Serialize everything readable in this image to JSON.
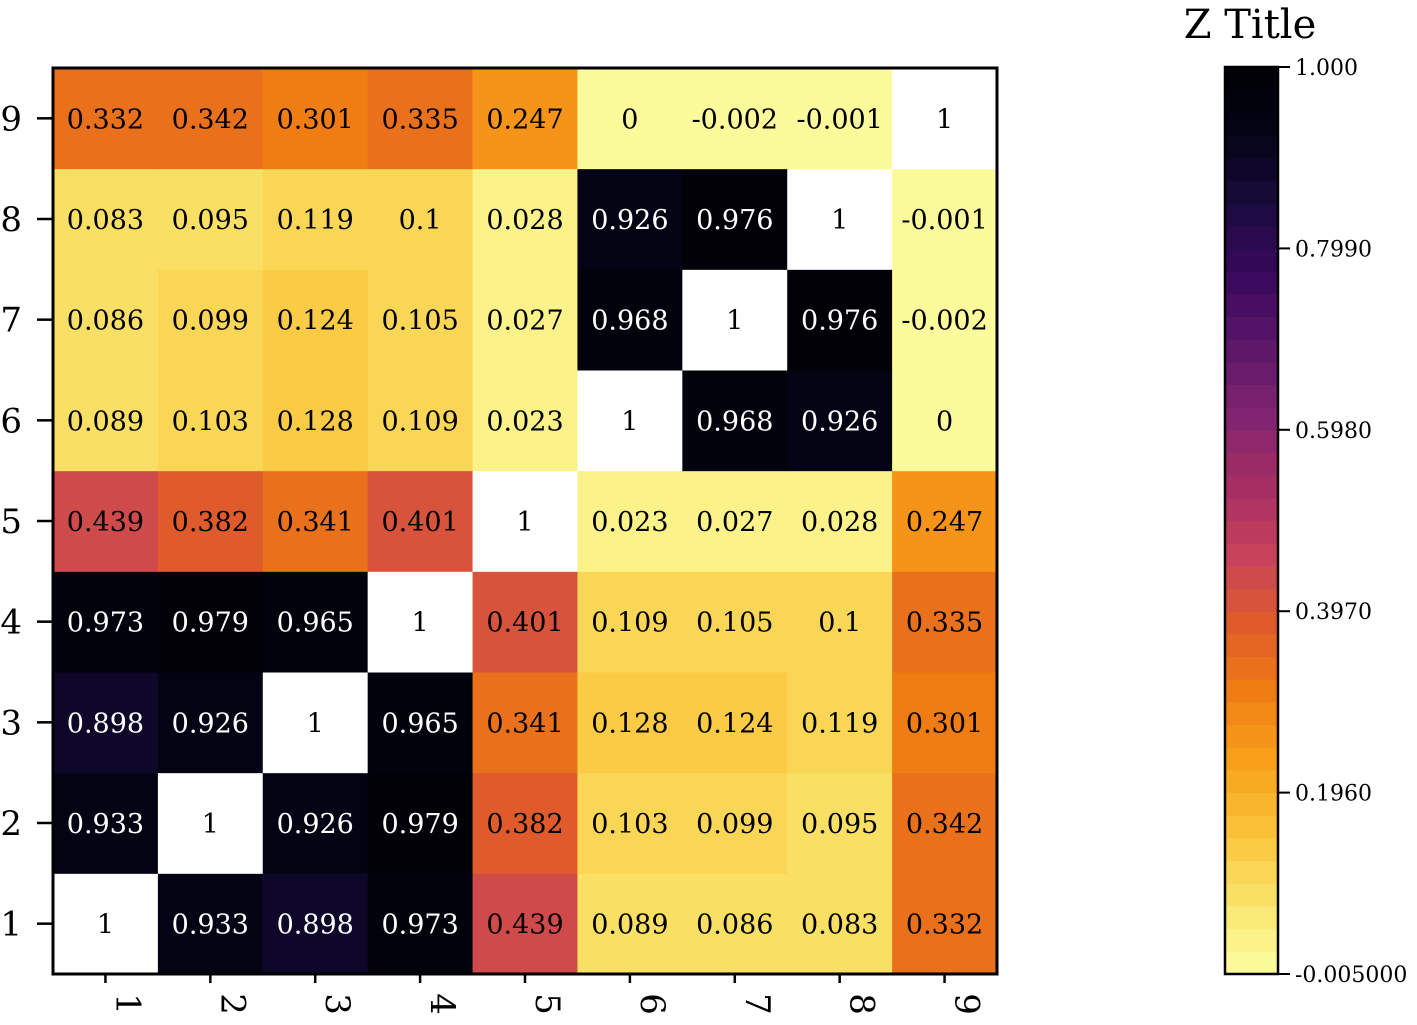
{
  "chart_data": {
    "type": "heatmap",
    "x_categories": [
      "1",
      "2",
      "3",
      "4",
      "5",
      "6",
      "7",
      "8",
      "9"
    ],
    "y_categories": [
      "1",
      "2",
      "3",
      "4",
      "5",
      "6",
      "7",
      "8",
      "9"
    ],
    "cell_labels": [
      [
        "1",
        "0.933",
        "0.898",
        "0.973",
        "0.439",
        "0.089",
        "0.086",
        "0.083",
        "0.332"
      ],
      [
        "0.933",
        "1",
        "0.926",
        "0.979",
        "0.382",
        "0.103",
        "0.099",
        "0.095",
        "0.342"
      ],
      [
        "0.898",
        "0.926",
        "1",
        "0.965",
        "0.341",
        "0.128",
        "0.124",
        "0.119",
        "0.301"
      ],
      [
        "0.973",
        "0.979",
        "0.965",
        "1",
        "0.401",
        "0.109",
        "0.105",
        "0.1",
        "0.335"
      ],
      [
        "0.439",
        "0.382",
        "0.341",
        "0.401",
        "1",
        "0.023",
        "0.027",
        "0.028",
        "0.247"
      ],
      [
        "0.089",
        "0.103",
        "0.128",
        "0.109",
        "0.023",
        "1",
        "0.968",
        "0.926",
        "0"
      ],
      [
        "0.086",
        "0.099",
        "0.124",
        "0.105",
        "0.027",
        "0.968",
        "1",
        "0.976",
        "-0.002"
      ],
      [
        "0.083",
        "0.095",
        "0.119",
        "0.1",
        "0.028",
        "0.926",
        "0.976",
        "1",
        "-0.001"
      ],
      [
        "0.332",
        "0.342",
        "0.301",
        "0.335",
        "0.247",
        "0",
        "-0.002",
        "-0.001",
        "1"
      ]
    ],
    "colorbar": {
      "title": "Z Title",
      "min": -0.005,
      "max": 1.0,
      "tick_values": [
        1.0,
        0.799,
        0.598,
        0.397,
        0.196,
        -0.005
      ],
      "tick_labels": [
        "1.000",
        "0.7990",
        "0.5980",
        "0.3970",
        "0.1960",
        "-0.005000"
      ],
      "levels": 40,
      "diagonal_color": "#ffffff",
      "colormap": [
        "#fcffa4",
        "#f9e56c",
        "#fbc43c",
        "#f9a21b",
        "#f07f13",
        "#e05c2a",
        "#c7425a",
        "#a52e63",
        "#812470",
        "#5c1669",
        "#39095e",
        "#1a0b40",
        "#050417",
        "#000004"
      ]
    }
  }
}
